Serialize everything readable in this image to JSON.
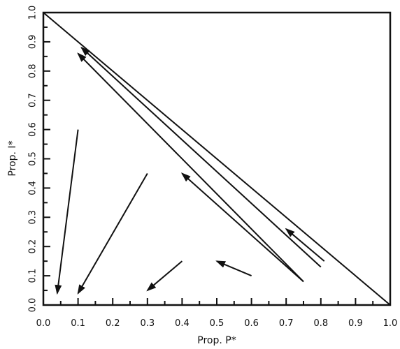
{
  "chart_data": {
    "type": "line",
    "title": "",
    "xlabel": "Prop. P*",
    "ylabel": "Prop. I*",
    "xlim": [
      0.0,
      1.0
    ],
    "ylim": [
      0.0,
      1.0
    ],
    "x_ticks": [
      0.0,
      0.1,
      0.2,
      0.3,
      0.4,
      0.5,
      0.6,
      0.7,
      0.8,
      0.9,
      1.0
    ],
    "y_ticks": [
      0.0,
      0.1,
      0.2,
      0.3,
      0.4,
      0.5,
      0.6,
      0.7,
      0.8,
      0.9,
      1.0
    ],
    "x_tick_labels": [
      "0.0",
      "0.1",
      "0.2",
      "0.3",
      "0.4",
      "0.5",
      "0.6",
      "0.7",
      "0.8",
      "0.9",
      "1.0"
    ],
    "y_tick_labels": [
      "0.0",
      "0.1",
      "0.2",
      "0.3",
      "0.4",
      "0.5",
      "0.6",
      "0.7",
      "0.8",
      "0.9",
      "1.0"
    ],
    "grid": false,
    "lines": [
      {
        "x": [
          0.0,
          1.0
        ],
        "y": [
          1.0,
          0.0
        ]
      }
    ],
    "arrows": [
      {
        "from": [
          0.8,
          0.13
        ],
        "to": [
          0.11,
          0.88
        ]
      },
      {
        "from": [
          0.75,
          0.08
        ],
        "to": [
          0.1,
          0.86
        ]
      },
      {
        "from": [
          0.75,
          0.08
        ],
        "to": [
          0.4,
          0.45
        ]
      },
      {
        "from": [
          0.81,
          0.15
        ],
        "to": [
          0.7,
          0.26
        ]
      },
      {
        "from": [
          0.1,
          0.6
        ],
        "to": [
          0.04,
          0.04
        ]
      },
      {
        "from": [
          0.3,
          0.45
        ],
        "to": [
          0.1,
          0.04
        ]
      },
      {
        "from": [
          0.4,
          0.15
        ],
        "to": [
          0.3,
          0.05
        ]
      },
      {
        "from": [
          0.6,
          0.1
        ],
        "to": [
          0.5,
          0.15
        ]
      }
    ]
  }
}
